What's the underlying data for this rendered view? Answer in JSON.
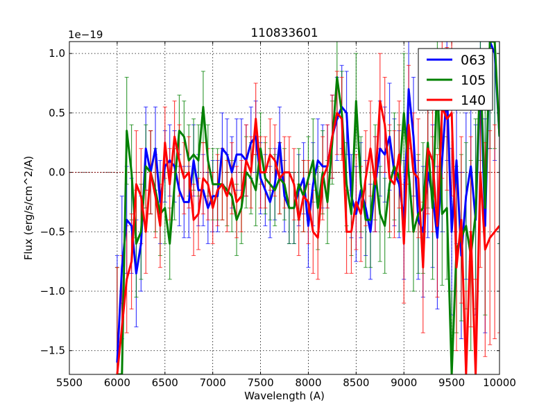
{
  "chart_data": {
    "type": "line",
    "title": "110833601",
    "xlabel": "Wavelength (A)",
    "ylabel": "Flux (erg/s/cm^2/A)",
    "y_offset_label": "1e−19",
    "xlim": [
      5500,
      10000
    ],
    "ylim": [
      -1.7,
      1.1
    ],
    "xticks": [
      5500,
      6000,
      6500,
      7000,
      7500,
      8000,
      8500,
      9000,
      9500,
      10000
    ],
    "xtick_labels": [
      "5500",
      "6000",
      "6500",
      "7000",
      "7500",
      "8000",
      "8500",
      "9000",
      "9500",
      "10000"
    ],
    "yticks": [
      -1.5,
      -1.0,
      -0.5,
      0.0,
      0.5,
      1.0
    ],
    "ytick_labels": [
      "−1.5",
      "−1.0",
      "−0.5",
      "0.0",
      "0.5",
      "1.0"
    ],
    "grid": true,
    "legend_position": "top-right",
    "zero_line": {
      "value": 0,
      "color": "#800000"
    },
    "x_start": 6000,
    "x_step": 50,
    "series": [
      {
        "name": "063",
        "color": "#0000ff",
        "values": [
          -1.6,
          -0.8,
          -0.4,
          -0.45,
          -0.85,
          -0.6,
          0.2,
          0.0,
          0.2,
          -0.25,
          0.05,
          0.1,
          0.05,
          -0.15,
          -0.25,
          -0.25,
          0.1,
          -0.15,
          -0.15,
          -0.3,
          -0.2,
          -0.2,
          0.2,
          0.15,
          0.0,
          0.15,
          0.15,
          0.1,
          0.25,
          0.3,
          -0.05,
          -0.15,
          -0.25,
          -0.1,
          0.25,
          -0.2,
          -0.3,
          -0.3,
          -0.15,
          -0.05,
          -0.45,
          -0.1,
          0.1,
          0.05,
          0.05,
          0.3,
          0.45,
          0.55,
          0.5,
          -0.2,
          -0.35,
          -0.15,
          -0.3,
          -0.5,
          -0.1,
          0.2,
          0.15,
          0.3,
          0.0,
          -0.1,
          -0.4,
          0.7,
          0.3,
          -0.4,
          -0.5,
          0.0,
          -0.2,
          -0.55,
          0.1,
          0.7,
          -0.5,
          0.1,
          -0.7,
          -0.2,
          0.05,
          -0.4,
          0.8,
          -0.45,
          1.1,
          1.0,
          0.3
        ],
        "errors": [
          0.9,
          0.6,
          0.45,
          0.4,
          0.45,
          0.4,
          0.35,
          0.35,
          0.35,
          0.35,
          0.3,
          0.3,
          0.3,
          0.3,
          0.3,
          0.3,
          0.3,
          0.3,
          0.3,
          0.3,
          0.3,
          0.3,
          0.3,
          0.3,
          0.3,
          0.3,
          0.3,
          0.3,
          0.3,
          0.3,
          0.3,
          0.3,
          0.3,
          0.3,
          0.3,
          0.3,
          0.3,
          0.3,
          0.3,
          0.3,
          0.35,
          0.35,
          0.35,
          0.35,
          0.35,
          0.35,
          0.35,
          0.35,
          0.35,
          0.35,
          0.4,
          0.4,
          0.4,
          0.4,
          0.4,
          0.4,
          0.4,
          0.45,
          0.45,
          0.45,
          0.5,
          0.5,
          0.5,
          0.5,
          0.55,
          0.55,
          0.6,
          0.6,
          0.6,
          0.6,
          0.7,
          0.7,
          0.7,
          0.7,
          0.8,
          0.8,
          0.8,
          0.9,
          0.9,
          0.9,
          0.9
        ]
      },
      {
        "name": "105",
        "color": "#008000",
        "values": [
          -1.7,
          -1.7,
          0.35,
          0.0,
          -0.6,
          -0.5,
          0.05,
          0.0,
          -0.15,
          -0.35,
          -0.3,
          -0.6,
          -0.1,
          0.35,
          0.3,
          0.1,
          0.15,
          0.1,
          0.55,
          0.1,
          -0.1,
          -0.1,
          -0.1,
          -0.15,
          -0.2,
          -0.4,
          -0.3,
          0.0,
          -0.05,
          -0.15,
          0.2,
          -0.05,
          -0.1,
          -0.15,
          -0.05,
          -0.1,
          -0.3,
          -0.3,
          -0.1,
          -0.2,
          -0.05,
          0.1,
          -0.3,
          0.0,
          -0.25,
          0.25,
          0.8,
          0.5,
          -0.1,
          -0.35,
          0.6,
          -0.1,
          -0.4,
          -0.4,
          0.0,
          -0.35,
          -0.45,
          -0.1,
          0.05,
          -0.05,
          0.5,
          0.0,
          -0.5,
          -0.35,
          -0.3,
          0.25,
          -0.3,
          0.8,
          -0.35,
          -0.3,
          -1.7,
          -0.65,
          -0.55,
          -0.45,
          -0.7,
          -0.35,
          0.9,
          -0.3,
          1.1,
          1.1,
          0.3
        ],
        "errors": [
          0.9,
          0.6,
          0.45,
          0.4,
          0.45,
          0.4,
          0.35,
          0.35,
          0.35,
          0.35,
          0.3,
          0.3,
          0.3,
          0.3,
          0.3,
          0.3,
          0.3,
          0.3,
          0.3,
          0.3,
          0.3,
          0.3,
          0.3,
          0.3,
          0.3,
          0.3,
          0.3,
          0.3,
          0.3,
          0.3,
          0.3,
          0.3,
          0.3,
          0.3,
          0.3,
          0.3,
          0.3,
          0.3,
          0.3,
          0.3,
          0.35,
          0.35,
          0.35,
          0.35,
          0.35,
          0.35,
          0.35,
          0.35,
          0.35,
          0.35,
          0.4,
          0.4,
          0.4,
          0.4,
          0.4,
          0.4,
          0.4,
          0.45,
          0.45,
          0.45,
          0.5,
          0.5,
          0.5,
          0.5,
          0.55,
          0.55,
          0.6,
          0.6,
          0.6,
          0.6,
          0.7,
          0.7,
          0.7,
          0.7,
          0.8,
          0.8,
          0.8,
          0.9,
          0.9,
          0.9,
          0.9
        ]
      },
      {
        "name": "140",
        "color": "#ff0000",
        "values": [
          -1.7,
          -1.3,
          -0.9,
          -0.75,
          -0.1,
          -0.2,
          -0.5,
          0.0,
          -0.2,
          -0.45,
          0.25,
          -0.1,
          0.3,
          0.1,
          -0.05,
          0.0,
          -0.4,
          -0.35,
          -0.05,
          -0.1,
          -0.3,
          -0.15,
          -0.1,
          -0.2,
          -0.05,
          -0.25,
          -0.2,
          0.1,
          0.0,
          0.45,
          0.0,
          0.0,
          0.15,
          0.1,
          -0.05,
          0.0,
          0.0,
          -0.1,
          -0.4,
          -0.2,
          -0.25,
          -0.5,
          -0.55,
          -0.05,
          0.05,
          0.3,
          0.5,
          0.45,
          -0.5,
          -0.5,
          -0.25,
          -0.35,
          -0.05,
          0.2,
          -0.1,
          0.6,
          0.4,
          -0.05,
          -0.1,
          0.15,
          -0.6,
          0.4,
          0.0,
          -0.05,
          -0.8,
          0.2,
          0.1,
          -0.45,
          0.55,
          0.45,
          0.5,
          -0.8,
          -0.4,
          -1.7,
          -0.5,
          -1.7,
          0.0,
          -0.65,
          -0.55,
          -0.5,
          -0.45
        ],
        "errors": [
          0.9,
          0.6,
          0.45,
          0.4,
          0.45,
          0.4,
          0.35,
          0.35,
          0.35,
          0.35,
          0.3,
          0.3,
          0.3,
          0.3,
          0.3,
          0.3,
          0.3,
          0.3,
          0.3,
          0.3,
          0.3,
          0.3,
          0.3,
          0.3,
          0.3,
          0.3,
          0.3,
          0.3,
          0.3,
          0.3,
          0.3,
          0.3,
          0.3,
          0.3,
          0.3,
          0.3,
          0.3,
          0.3,
          0.3,
          0.3,
          0.35,
          0.35,
          0.35,
          0.35,
          0.35,
          0.35,
          0.35,
          0.35,
          0.35,
          0.35,
          0.4,
          0.4,
          0.4,
          0.4,
          0.4,
          0.4,
          0.4,
          0.45,
          0.45,
          0.45,
          0.5,
          0.5,
          0.5,
          0.5,
          0.55,
          0.55,
          0.6,
          0.6,
          0.6,
          0.6,
          0.7,
          0.7,
          0.7,
          0.7,
          0.8,
          0.8,
          0.8,
          0.9,
          0.9,
          0.9,
          0.9
        ]
      }
    ]
  }
}
